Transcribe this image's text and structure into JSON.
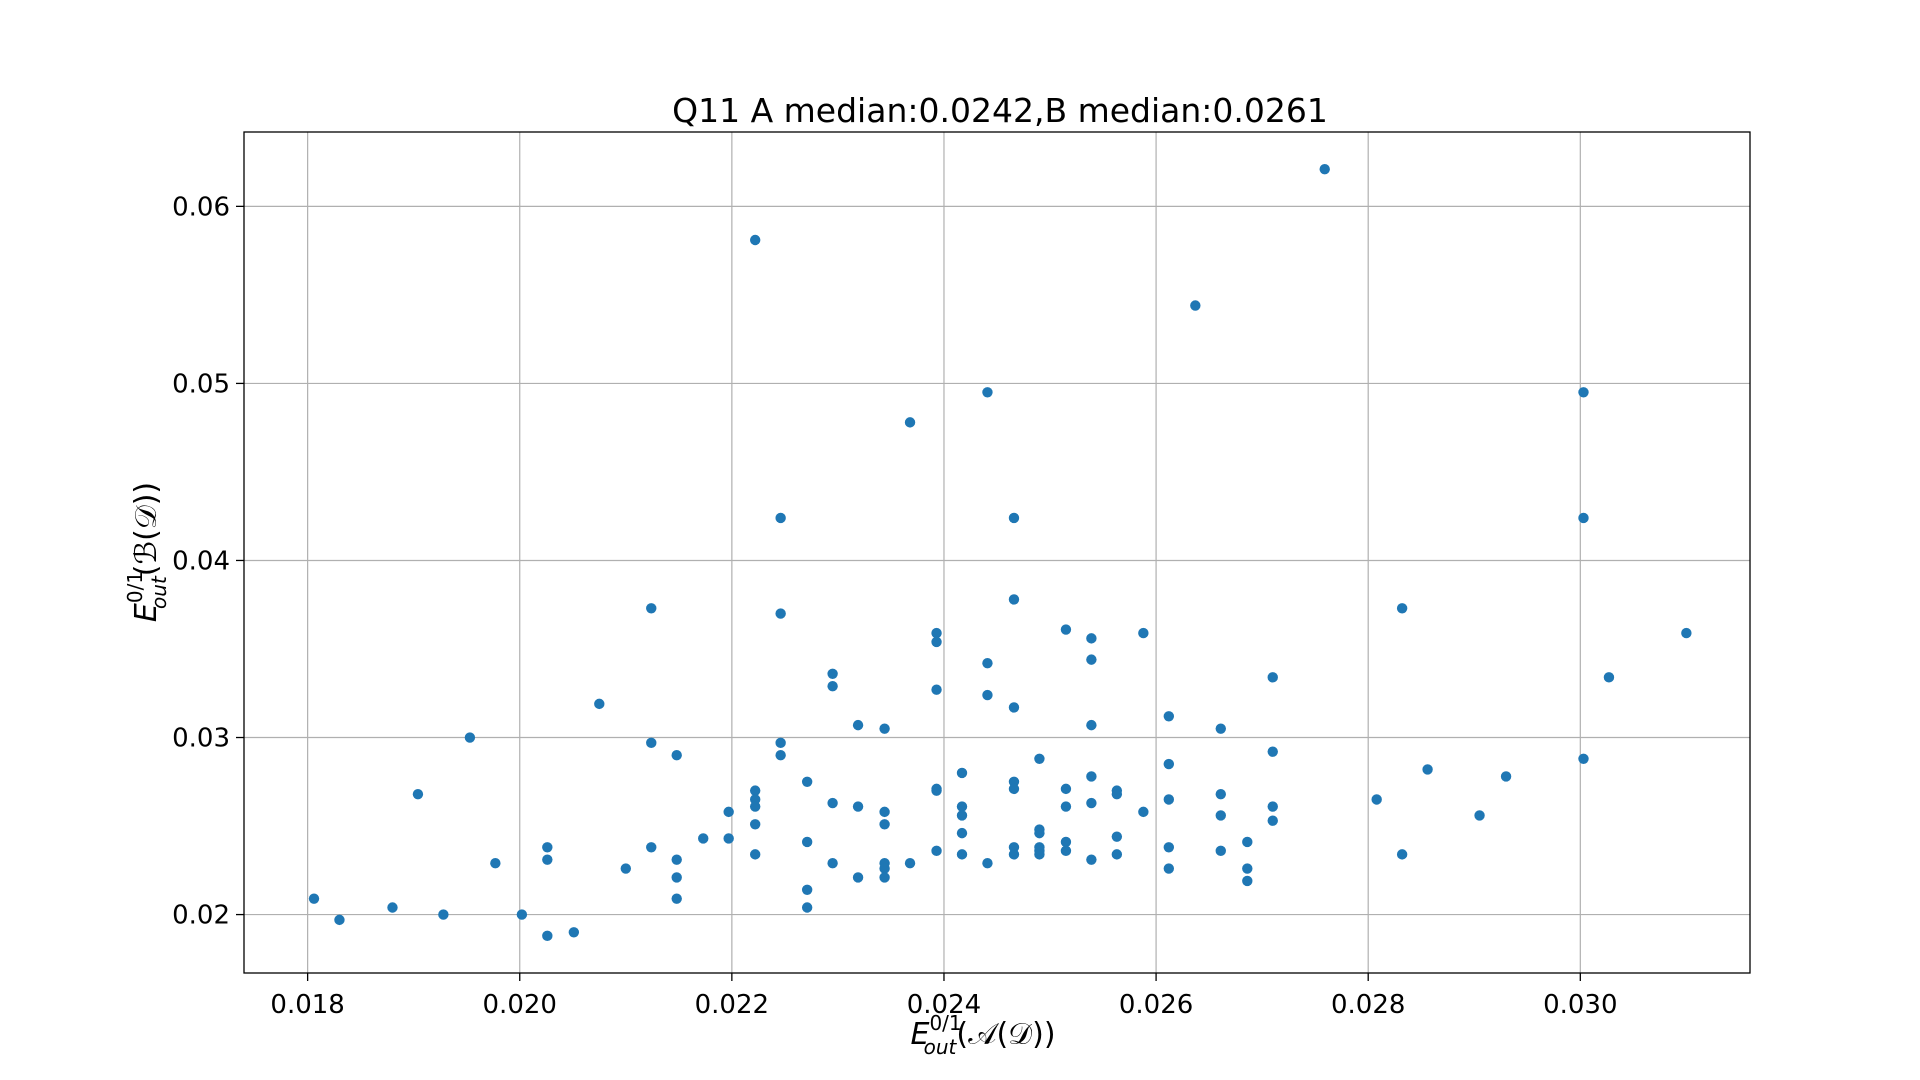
{
  "chart_data": {
    "type": "scatter",
    "title": "Q11 A median:0.0242,B median:0.0261",
    "xlabel": {
      "symbol": "E",
      "superscript": "0/1",
      "subscript": "out",
      "argument": "(𝒜(𝒟))"
    },
    "ylabel": {
      "symbol": "E",
      "superscript": "0/1",
      "subscript": "out",
      "argument": "(ℬ(𝒟))"
    },
    "xlim": [
      0.0174,
      0.0316
    ],
    "ylim": [
      0.0167,
      0.0642
    ],
    "xticks": [
      "0.018",
      "0.020",
      "0.022",
      "0.024",
      "0.026",
      "0.028",
      "0.030"
    ],
    "yticks": [
      "0.02",
      "0.03",
      "0.04",
      "0.05",
      "0.06"
    ],
    "grid": true,
    "color": "#1f77b4",
    "points": [
      [
        0.01806,
        0.0209
      ],
      [
        0.0183,
        0.0197
      ],
      [
        0.0188,
        0.0204
      ],
      [
        0.01904,
        0.0268
      ],
      [
        0.01928,
        0.02
      ],
      [
        0.01953,
        0.03
      ],
      [
        0.01977,
        0.0229
      ],
      [
        0.02002,
        0.02
      ],
      [
        0.02026,
        0.0238
      ],
      [
        0.02026,
        0.0231
      ],
      [
        0.02026,
        0.0188
      ],
      [
        0.02051,
        0.019
      ],
      [
        0.02075,
        0.0319
      ],
      [
        0.021,
        0.0226
      ],
      [
        0.02124,
        0.0373
      ],
      [
        0.02124,
        0.0297
      ],
      [
        0.02124,
        0.0238
      ],
      [
        0.02148,
        0.029
      ],
      [
        0.02148,
        0.0231
      ],
      [
        0.02148,
        0.0221
      ],
      [
        0.02148,
        0.0209
      ],
      [
        0.02173,
        0.0243
      ],
      [
        0.02197,
        0.0258
      ],
      [
        0.02197,
        0.0243
      ],
      [
        0.02222,
        0.0581
      ],
      [
        0.02222,
        0.027
      ],
      [
        0.02222,
        0.0265
      ],
      [
        0.02222,
        0.0261
      ],
      [
        0.02222,
        0.0251
      ],
      [
        0.02222,
        0.0234
      ],
      [
        0.02246,
        0.0424
      ],
      [
        0.02246,
        0.037
      ],
      [
        0.02246,
        0.0297
      ],
      [
        0.02246,
        0.029
      ],
      [
        0.02271,
        0.0275
      ],
      [
        0.02271,
        0.0241
      ],
      [
        0.02271,
        0.0214
      ],
      [
        0.02271,
        0.0204
      ],
      [
        0.02295,
        0.0336
      ],
      [
        0.02295,
        0.0329
      ],
      [
        0.02295,
        0.0263
      ],
      [
        0.02295,
        0.0229
      ],
      [
        0.02319,
        0.0307
      ],
      [
        0.02319,
        0.0261
      ],
      [
        0.02319,
        0.0221
      ],
      [
        0.02344,
        0.0305
      ],
      [
        0.02344,
        0.0258
      ],
      [
        0.02344,
        0.0251
      ],
      [
        0.02344,
        0.0229
      ],
      [
        0.02344,
        0.0226
      ],
      [
        0.02344,
        0.0221
      ],
      [
        0.02368,
        0.0478
      ],
      [
        0.02368,
        0.0229
      ],
      [
        0.02393,
        0.0359
      ],
      [
        0.02393,
        0.0354
      ],
      [
        0.02393,
        0.0327
      ],
      [
        0.02393,
        0.0271
      ],
      [
        0.02393,
        0.027
      ],
      [
        0.02393,
        0.0236
      ],
      [
        0.02417,
        0.028
      ],
      [
        0.02417,
        0.0261
      ],
      [
        0.02417,
        0.0256
      ],
      [
        0.02417,
        0.0246
      ],
      [
        0.02417,
        0.0234
      ],
      [
        0.02441,
        0.0495
      ],
      [
        0.02441,
        0.0342
      ],
      [
        0.02441,
        0.0324
      ],
      [
        0.02441,
        0.0229
      ],
      [
        0.02466,
        0.0424
      ],
      [
        0.02466,
        0.0378
      ],
      [
        0.02466,
        0.0317
      ],
      [
        0.02466,
        0.0275
      ],
      [
        0.02466,
        0.0271
      ],
      [
        0.02466,
        0.0238
      ],
      [
        0.02466,
        0.0234
      ],
      [
        0.0249,
        0.0288
      ],
      [
        0.0249,
        0.0248
      ],
      [
        0.0249,
        0.0246
      ],
      [
        0.0249,
        0.0238
      ],
      [
        0.0249,
        0.0236
      ],
      [
        0.0249,
        0.0234
      ],
      [
        0.02515,
        0.0361
      ],
      [
        0.02515,
        0.0271
      ],
      [
        0.02515,
        0.0261
      ],
      [
        0.02515,
        0.0241
      ],
      [
        0.02515,
        0.0236
      ],
      [
        0.02539,
        0.0356
      ],
      [
        0.02539,
        0.0344
      ],
      [
        0.02539,
        0.0307
      ],
      [
        0.02539,
        0.0278
      ],
      [
        0.02539,
        0.0263
      ],
      [
        0.02539,
        0.0231
      ],
      [
        0.02563,
        0.027
      ],
      [
        0.02563,
        0.0268
      ],
      [
        0.02563,
        0.0244
      ],
      [
        0.02563,
        0.0234
      ],
      [
        0.02588,
        0.0359
      ],
      [
        0.02588,
        0.0258
      ],
      [
        0.02612,
        0.0312
      ],
      [
        0.02612,
        0.0285
      ],
      [
        0.02612,
        0.0265
      ],
      [
        0.02612,
        0.0238
      ],
      [
        0.02612,
        0.0226
      ],
      [
        0.02637,
        0.0544
      ],
      [
        0.02661,
        0.0305
      ],
      [
        0.02661,
        0.0268
      ],
      [
        0.02661,
        0.0256
      ],
      [
        0.02661,
        0.0236
      ],
      [
        0.02686,
        0.0241
      ],
      [
        0.02686,
        0.0226
      ],
      [
        0.02686,
        0.0219
      ],
      [
        0.0271,
        0.0334
      ],
      [
        0.0271,
        0.0292
      ],
      [
        0.0271,
        0.0261
      ],
      [
        0.0271,
        0.0253
      ],
      [
        0.02759,
        0.0621
      ],
      [
        0.02808,
        0.0265
      ],
      [
        0.02832,
        0.0373
      ],
      [
        0.02832,
        0.0234
      ],
      [
        0.02856,
        0.0282
      ],
      [
        0.02905,
        0.0256
      ],
      [
        0.0293,
        0.0278
      ],
      [
        0.03003,
        0.0495
      ],
      [
        0.03003,
        0.0424
      ],
      [
        0.03003,
        0.0288
      ],
      [
        0.03027,
        0.0334
      ],
      [
        0.031,
        0.0359
      ]
    ]
  }
}
